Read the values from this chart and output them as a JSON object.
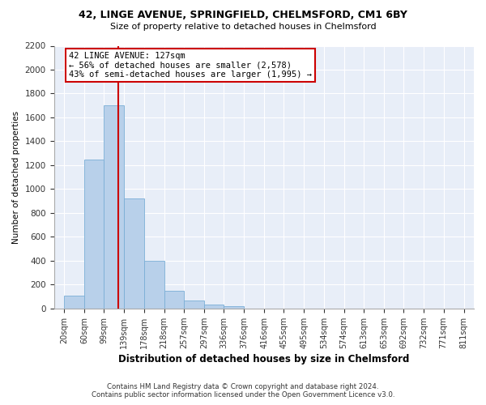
{
  "title": "42, LINGE AVENUE, SPRINGFIELD, CHELMSFORD, CM1 6BY",
  "subtitle": "Size of property relative to detached houses in Chelmsford",
  "xlabel": "Distribution of detached houses by size in Chelmsford",
  "ylabel": "Number of detached properties",
  "bin_labels": [
    "20sqm",
    "60sqm",
    "99sqm",
    "139sqm",
    "178sqm",
    "218sqm",
    "257sqm",
    "297sqm",
    "336sqm",
    "376sqm",
    "416sqm",
    "455sqm",
    "495sqm",
    "534sqm",
    "574sqm",
    "613sqm",
    "653sqm",
    "692sqm",
    "732sqm",
    "771sqm",
    "811sqm"
  ],
  "bin_edges": [
    20,
    60,
    99,
    139,
    178,
    218,
    257,
    297,
    336,
    376,
    416,
    455,
    495,
    534,
    574,
    613,
    653,
    692,
    732,
    771,
    811
  ],
  "bar_heights": [
    110,
    1250,
    1700,
    920,
    400,
    150,
    65,
    35,
    20,
    0,
    0,
    0,
    0,
    0,
    0,
    0,
    0,
    0,
    0,
    0
  ],
  "bar_color": "#b8d0ea",
  "bar_edgecolor": "#7aaed6",
  "property_size": 127,
  "vline_color": "#cc0000",
  "annotation_text": "42 LINGE AVENUE: 127sqm\n← 56% of detached houses are smaller (2,578)\n43% of semi-detached houses are larger (1,995) →",
  "annotation_box_color": "#cc0000",
  "ylim": [
    0,
    2200
  ],
  "yticks": [
    0,
    200,
    400,
    600,
    800,
    1000,
    1200,
    1400,
    1600,
    1800,
    2000,
    2200
  ],
  "background_color": "#e8eef8",
  "grid_color": "#ffffff",
  "footer_line1": "Contains HM Land Registry data © Crown copyright and database right 2024.",
  "footer_line2": "Contains public sector information licensed under the Open Government Licence v3.0."
}
